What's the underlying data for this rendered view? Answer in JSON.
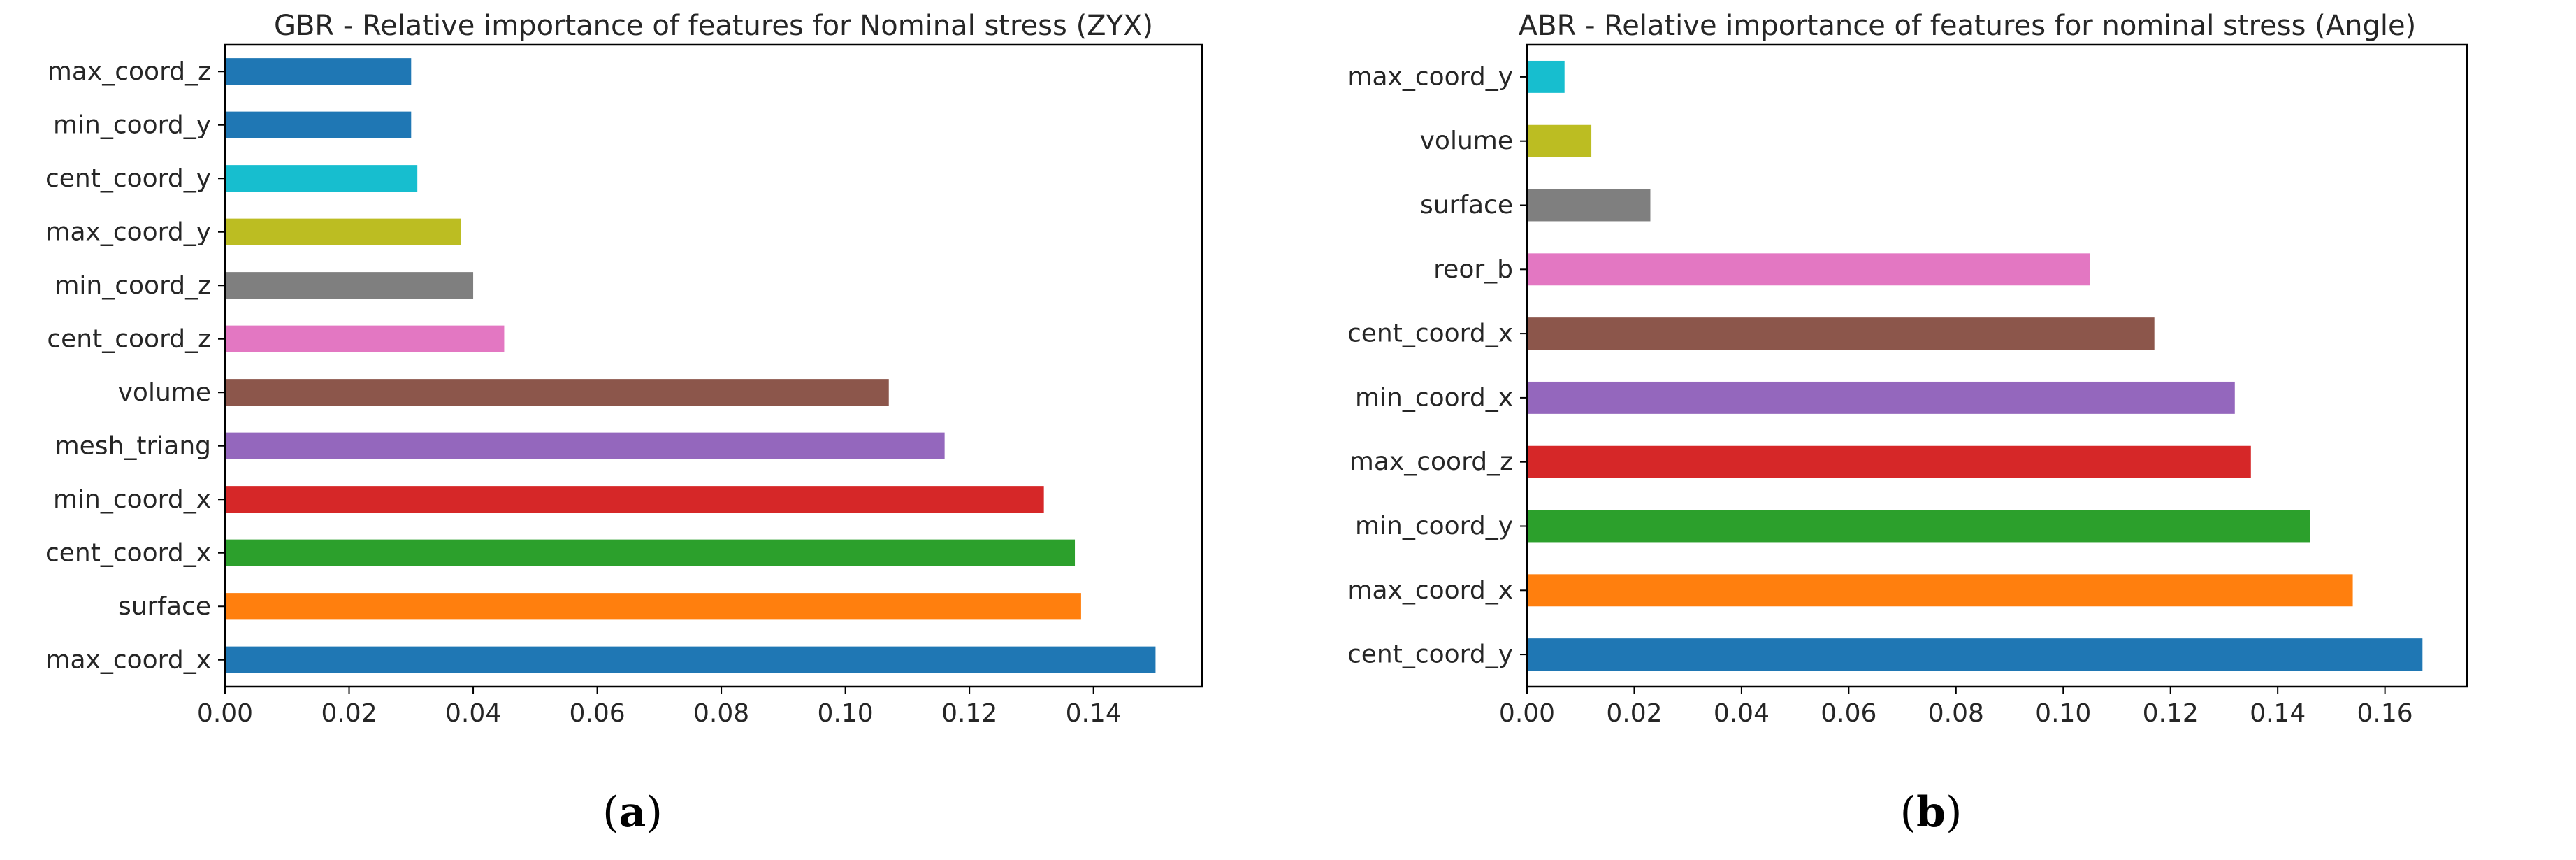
{
  "chart_data": [
    {
      "id": "a",
      "type": "bar",
      "orientation": "horizontal",
      "title": "GBR - Relative importance of features for Nominal stress (ZYX)",
      "categories": [
        "max_coord_x",
        "surface",
        "cent_coord_x",
        "min_coord_x",
        "mesh_triang",
        "volume",
        "cent_coord_z",
        "min_coord_z",
        "max_coord_y",
        "cent_coord_y",
        "min_coord_y",
        "max_coord_z"
      ],
      "values": [
        0.15,
        0.138,
        0.137,
        0.132,
        0.116,
        0.107,
        0.045,
        0.04,
        0.038,
        0.031,
        0.03,
        0.03
      ],
      "colors": [
        "#1f77b4",
        "#ff7f0e",
        "#2ca02c",
        "#d62728",
        "#9467bd",
        "#8c564b",
        "#e377c2",
        "#7f7f7f",
        "#bcbd22",
        "#17becf",
        "#1f77b4",
        "#1f77b4"
      ],
      "xticks": [
        0.0,
        0.02,
        0.04,
        0.06,
        0.08,
        0.1,
        0.12,
        0.14
      ],
      "xtick_labels": [
        "0.00",
        "0.02",
        "0.04",
        "0.06",
        "0.08",
        "0.10",
        "0.12",
        "0.14"
      ],
      "xlim": [
        0,
        0.1575
      ],
      "xlabel": "",
      "ylabel": "",
      "caption_letter": "a"
    },
    {
      "id": "b",
      "type": "bar",
      "orientation": "horizontal",
      "title": "ABR - Relative importance of features for nominal stress (Angle)",
      "categories": [
        "cent_coord_y",
        "max_coord_x",
        "min_coord_y",
        "max_coord_z",
        "min_coord_x",
        "cent_coord_x",
        "reor_b",
        "surface",
        "volume",
        "max_coord_y"
      ],
      "values": [
        0.167,
        0.154,
        0.146,
        0.135,
        0.132,
        0.117,
        0.105,
        0.023,
        0.012,
        0.007
      ],
      "colors": [
        "#1f77b4",
        "#ff7f0e",
        "#2ca02c",
        "#d62728",
        "#9467bd",
        "#8c564b",
        "#e377c2",
        "#7f7f7f",
        "#bcbd22",
        "#17becf"
      ],
      "xticks": [
        0.0,
        0.02,
        0.04,
        0.06,
        0.08,
        0.1,
        0.12,
        0.14,
        0.16
      ],
      "xtick_labels": [
        "0.00",
        "0.02",
        "0.04",
        "0.06",
        "0.08",
        "0.10",
        "0.12",
        "0.14",
        "0.16"
      ],
      "xlim": [
        0,
        0.1753
      ],
      "xlabel": "",
      "ylabel": "",
      "caption_letter": "b"
    }
  ],
  "captions": [
    {
      "open": "(",
      "letter": "a",
      "close": ")"
    },
    {
      "open": "(",
      "letter": "b",
      "close": ")"
    }
  ]
}
